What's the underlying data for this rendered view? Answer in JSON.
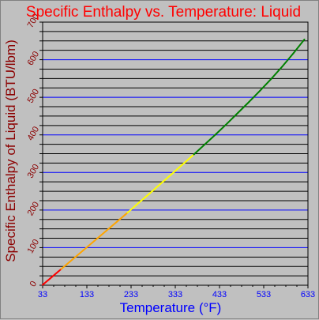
{
  "chart_data": {
    "type": "line",
    "title": "Specific Enthalpy vs. Temperature: Liquid",
    "xlabel": "Temperature (°F)",
    "ylabel": "Specific Enthalpy of Liquid (BTU/lbm)",
    "xlim": [
      33,
      633
    ],
    "ylim": [
      0,
      700
    ],
    "x_ticks": [
      "33",
      "133",
      "233",
      "333",
      "433",
      "533",
      "633"
    ],
    "y_ticks": [
      "0",
      "100",
      "200",
      "300",
      "400",
      "500",
      "600",
      "700"
    ],
    "grid": true,
    "legend": "none",
    "colors": {
      "background": "#c0c0c0",
      "plot_area": "#c0c0c0",
      "grid_major": "#0000ff",
      "grid_minor": "#000000",
      "segments": [
        "#ff0000",
        "#ffa500",
        "#ffff00",
        "#008000"
      ]
    },
    "series": [
      {
        "x": [
          33,
          50,
          75,
          100,
          125,
          150,
          175,
          200,
          225,
          250,
          275,
          300,
          325,
          350,
          375,
          400,
          425,
          450,
          475,
          500,
          525,
          550,
          575,
          600,
          625
        ],
        "values": [
          1,
          18,
          43,
          68,
          93,
          118,
          143,
          168,
          193,
          219,
          244,
          270,
          296,
          322,
          348,
          375,
          402,
          430,
          459,
          488,
          518,
          549,
          582,
          617,
          654
        ],
        "color_stops": [
          {
            "x_max": 85,
            "color": "#ff0000"
          },
          {
            "x_max": 230,
            "color": "#ffa500"
          },
          {
            "x_max": 375,
            "color": "#ffff00"
          },
          {
            "x_max": 633,
            "color": "#008000"
          }
        ]
      }
    ]
  }
}
